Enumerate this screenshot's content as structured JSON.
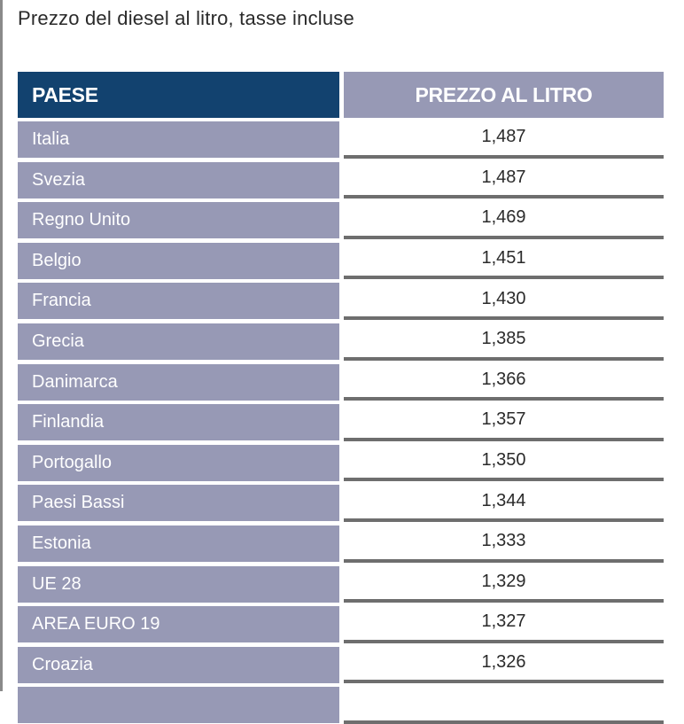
{
  "title": "Prezzo del diesel al litro, tasse incluse",
  "table": {
    "headers": [
      "PAESE",
      "PREZZO AL LITRO"
    ],
    "rows": [
      {
        "country": "Italia",
        "price": "1,487"
      },
      {
        "country": "Svezia",
        "price": "1,487"
      },
      {
        "country": "Regno Unito",
        "price": "1,469"
      },
      {
        "country": "Belgio",
        "price": "1,451"
      },
      {
        "country": "Francia",
        "price": "1,430"
      },
      {
        "country": "Grecia",
        "price": "1,385"
      },
      {
        "country": "Danimarca",
        "price": "1,366"
      },
      {
        "country": "Finlandia",
        "price": "1,357"
      },
      {
        "country": "Portogallo",
        "price": "1,350"
      },
      {
        "country": "Paesi Bassi",
        "price": "1,344"
      },
      {
        "country": "Estonia",
        "price": "1,333"
      },
      {
        "country": "UE 28",
        "price": "1,329"
      },
      {
        "country": "AREA EURO 19",
        "price": "1,327"
      },
      {
        "country": "Croazia",
        "price": "1,326"
      },
      {
        "country": "",
        "price": ""
      }
    ]
  },
  "colors": {
    "header_country_bg": "#12426f",
    "header_price_bg": "#9799b5",
    "country_cell_bg": "#9799b5",
    "row_divider": "#6e6e6e"
  }
}
